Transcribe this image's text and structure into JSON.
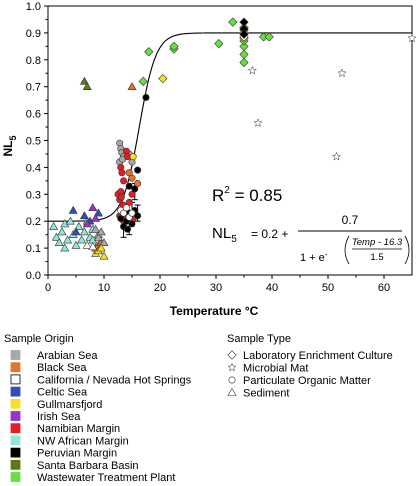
{
  "chart_data": {
    "type": "scatter",
    "xlabel": "Temperature °C",
    "ylabel": "NL",
    "ylabel_sub": "5",
    "xlim": [
      0,
      65
    ],
    "ylim": [
      0.0,
      1.0
    ],
    "xticks": [
      "0",
      "10",
      "20",
      "30",
      "40",
      "50",
      "60"
    ],
    "yticks": [
      "0.0",
      "0.1",
      "0.2",
      "0.3",
      "0.4",
      "0.5",
      "0.6",
      "0.7",
      "0.8",
      "0.9",
      "1.0"
    ],
    "fit": {
      "a": 0.2,
      "b": 0.7,
      "c": 16.3,
      "d": 1.5
    },
    "annotations": {
      "r2_prefix": "R",
      "r2_sup": "2",
      "r2_value": " = 0.85",
      "eq_lhs": "NL",
      "eq_lhs_sub": "5",
      "eq_base": "= 0.2 +",
      "eq_num": "0.7",
      "eq_den_prefix": "1 + e",
      "eq_den_sup": "-",
      "eq_exp_num": "Temp - 16.3",
      "eq_exp_den": "1.5"
    },
    "legend_origin": {
      "title": "Sample Origin",
      "entries": [
        {
          "label": "Arabian Sea",
          "color": "#a8a8a8"
        },
        {
          "label": "Black Sea",
          "color": "#e8732a"
        },
        {
          "label": "California / Nevada Hot Springs",
          "color": "#ffffff"
        },
        {
          "label": "Celtic Sea",
          "color": "#2e4fb8"
        },
        {
          "label": "Gullmarsfjord",
          "color": "#f5e320"
        },
        {
          "label": "Irish Sea",
          "color": "#a030c8"
        },
        {
          "label": "Namibian Margin",
          "color": "#e31e24"
        },
        {
          "label": "NW African Margin",
          "color": "#8fe8dc"
        },
        {
          "label": "Peruvian Margin",
          "color": "#000000"
        },
        {
          "label": "Santa Barbara Basin",
          "color": "#5a7a1a"
        },
        {
          "label": "Wastewater Treatment Plant",
          "color": "#66e03a"
        }
      ]
    },
    "legend_type": {
      "title": "Sample Type",
      "entries": [
        {
          "label": "Laboratory Enrichment Culture",
          "shape": "diamond"
        },
        {
          "label": "Microbial Mat",
          "shape": "star"
        },
        {
          "label": "Particulate Organic Matter",
          "shape": "circle"
        },
        {
          "label": "Sediment",
          "shape": "triangle"
        }
      ]
    },
    "series": [
      {
        "origin": "Wastewater Treatment Plant",
        "shape": "diamond",
        "color": "#66e03a",
        "points": [
          [
            17,
            0.72
          ],
          [
            18,
            0.83
          ],
          [
            22.5,
            0.84
          ],
          [
            22.5,
            0.85
          ],
          [
            30.5,
            0.86
          ],
          [
            33,
            0.94
          ],
          [
            35,
            0.79
          ],
          [
            35,
            0.82
          ],
          [
            35,
            0.85
          ],
          [
            35,
            0.87
          ],
          [
            38.5,
            0.885
          ],
          [
            39.5,
            0.885
          ]
        ]
      },
      {
        "origin": "Gullmarsfjord",
        "shape": "diamond",
        "color": "#f5e320",
        "points": [
          [
            20.5,
            0.73
          ],
          [
            35,
            0.91
          ],
          [
            35,
            0.92
          ],
          [
            35,
            0.88
          ]
        ]
      },
      {
        "origin": "California / Nevada Hot Springs",
        "shape": "diamond",
        "color": "#ffffff",
        "points": [
          [
            35,
            0.9
          ],
          [
            35,
            0.885
          ]
        ]
      },
      {
        "origin": "Peruvian Margin",
        "shape": "diamond",
        "color": "#000000",
        "points": [
          [
            35,
            0.94
          ],
          [
            35,
            0.915
          ],
          [
            35,
            0.895
          ]
        ]
      },
      {
        "origin": "Microbial Mat",
        "shape": "star",
        "color": "#ffffff",
        "points": [
          [
            36.5,
            0.76
          ],
          [
            37.5,
            0.565
          ],
          [
            51.5,
            0.44
          ],
          [
            52.5,
            0.75
          ],
          [
            65,
            0.88
          ]
        ]
      },
      {
        "origin": "Arabian Sea",
        "shape": "circle",
        "color": "#a8a8a8",
        "points": [
          [
            12.8,
            0.49
          ],
          [
            13,
            0.47
          ],
          [
            13.2,
            0.455
          ],
          [
            13.5,
            0.44
          ],
          [
            12.8,
            0.42
          ],
          [
            13.3,
            0.43
          ],
          [
            14.5,
            0.45
          ],
          [
            15,
            0.42
          ]
        ]
      },
      {
        "origin": "Black Sea",
        "shape": "circle",
        "color": "#e8732a",
        "points": [
          [
            14.5,
            0.38
          ],
          [
            15,
            0.36
          ],
          [
            16,
            0.34
          ]
        ]
      },
      {
        "origin": "Namibian Margin",
        "shape": "circle",
        "color": "#e31e24",
        "points": [
          [
            13,
            0.4
          ],
          [
            13.2,
            0.38
          ],
          [
            13.5,
            0.35
          ],
          [
            14,
            0.46
          ],
          [
            14.2,
            0.44
          ],
          [
            12.5,
            0.3
          ],
          [
            12.8,
            0.28
          ],
          [
            13,
            0.31
          ],
          [
            13.4,
            0.26
          ],
          [
            13.8,
            0.24
          ],
          [
            14.5,
            0.27
          ],
          [
            15,
            0.3
          ],
          [
            12.8,
            0.22
          ],
          [
            13.5,
            0.2
          ],
          [
            14,
            0.22
          ],
          [
            15.2,
            0.21
          ],
          [
            13.1,
            0.29
          ]
        ]
      },
      {
        "origin": "Peruvian Margin",
        "shape": "circle",
        "color": "#000000",
        "points": [
          [
            14.5,
            0.33
          ],
          [
            15.5,
            0.32
          ],
          [
            16,
            0.39
          ],
          [
            17.5,
            0.66
          ],
          [
            13,
            0.21
          ],
          [
            13.5,
            0.18
          ],
          [
            14,
            0.2
          ],
          [
            14.5,
            0.23
          ],
          [
            15,
            0.19
          ],
          [
            15.5,
            0.24
          ],
          [
            16,
            0.22
          ],
          [
            14.2,
            0.17
          ]
        ]
      },
      {
        "origin": "Gullmarsfjord",
        "shape": "circle",
        "color": "#f5e320",
        "points": [
          [
            15.2,
            0.44
          ]
        ]
      },
      {
        "origin": "California / Nevada Hot Springs",
        "shape": "circle",
        "color": "#ffffff",
        "points": [
          [
            13,
            0.24
          ],
          [
            13.5,
            0.23
          ],
          [
            14,
            0.25
          ],
          [
            14.5,
            0.215
          ],
          [
            15,
            0.23
          ]
        ]
      },
      {
        "origin": "Black Sea",
        "shape": "triangle",
        "color": "#e8732a",
        "points": [
          [
            15,
            0.7
          ],
          [
            8.5,
            0.1
          ],
          [
            9,
            0.11
          ],
          [
            9.5,
            0.12
          ]
        ]
      },
      {
        "origin": "Santa Barbara Basin",
        "shape": "triangle",
        "color": "#5a7a1a",
        "points": [
          [
            6.5,
            0.72
          ],
          [
            7,
            0.7
          ]
        ]
      },
      {
        "origin": "NW African Margin",
        "shape": "triangle",
        "color": "#8fe8dc",
        "points": [
          [
            1,
            0.18
          ],
          [
            1.5,
            0.14
          ],
          [
            2,
            0.12
          ],
          [
            2.5,
            0.16
          ],
          [
            3,
            0.19
          ],
          [
            3,
            0.1
          ],
          [
            3.5,
            0.13
          ],
          [
            4,
            0.2
          ],
          [
            4.5,
            0.15
          ],
          [
            5,
            0.11
          ],
          [
            5.5,
            0.18
          ],
          [
            6,
            0.13
          ],
          [
            6.5,
            0.16
          ],
          [
            7,
            0.2
          ],
          [
            7.5,
            0.14
          ],
          [
            8,
            0.17
          ],
          [
            8,
            0.13
          ],
          [
            9,
            0.15
          ]
        ]
      },
      {
        "origin": "Celtic Sea",
        "shape": "triangle",
        "color": "#2e4fb8",
        "points": [
          [
            4.5,
            0.24
          ],
          [
            6.5,
            0.22
          ],
          [
            7.5,
            0.2
          ],
          [
            9,
            0.23
          ],
          [
            5,
            0.16
          ]
        ]
      },
      {
        "origin": "Irish Sea",
        "shape": "triangle",
        "color": "#a030c8",
        "points": [
          [
            7,
            0.19
          ],
          [
            8,
            0.25
          ],
          [
            8.5,
            0.21
          ]
        ]
      },
      {
        "origin": "Arabian Sea",
        "shape": "triangle",
        "color": "#a8a8a8",
        "points": [
          [
            8.5,
            0.17
          ],
          [
            9,
            0.14
          ],
          [
            9.5,
            0.16
          ],
          [
            10,
            0.12
          ]
        ]
      },
      {
        "origin": "Gullmarsfjord",
        "shape": "triangle",
        "color": "#f5e320",
        "points": [
          [
            8.5,
            0.08
          ],
          [
            9,
            0.09
          ],
          [
            9.5,
            0.1
          ],
          [
            10,
            0.07
          ]
        ]
      },
      {
        "origin": "California / Nevada Hot Springs",
        "shape": "triangle",
        "color": "#ffffff",
        "points": [
          [
            7,
            0.11
          ],
          [
            8,
            0.105
          ]
        ]
      }
    ],
    "error_bars": [
      {
        "x": 15,
        "y": 0.23,
        "low": 0.19,
        "high": 0.27
      },
      {
        "x": 13.5,
        "y": 0.17,
        "low": 0.14,
        "high": 0.2
      },
      {
        "x": 14.5,
        "y": 0.18,
        "low": 0.15,
        "high": 0.21
      },
      {
        "x": 16,
        "y": 0.23,
        "low": 0.2,
        "high": 0.26
      },
      {
        "x": 15.5,
        "y": 0.31,
        "low": 0.28,
        "high": 0.34
      }
    ]
  }
}
